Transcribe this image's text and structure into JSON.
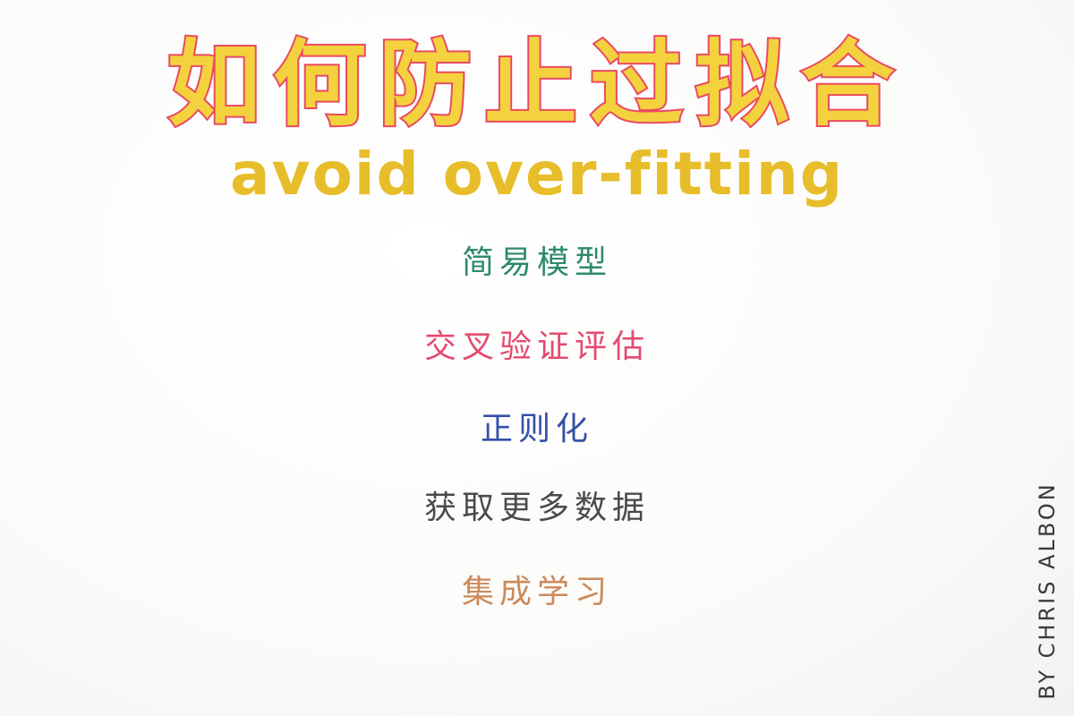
{
  "title": {
    "chinese": "如何防止过拟合",
    "english": "avoid over-fitting"
  },
  "items": [
    "简易模型",
    "交叉验证评估",
    "正则化",
    "获取更多数据",
    "集成学习"
  ],
  "signature": "BY CHRIS ALBON",
  "colors": {
    "title_fill": "#f3d23e",
    "title_outline": "#ea4a61",
    "subtitle": "#e7bd2a",
    "item_1": "#2e8b6a",
    "item_2": "#e44a6f",
    "item_3": "#3450a8",
    "item_4": "#4a4a4a",
    "item_5": "#cc8a5a"
  }
}
